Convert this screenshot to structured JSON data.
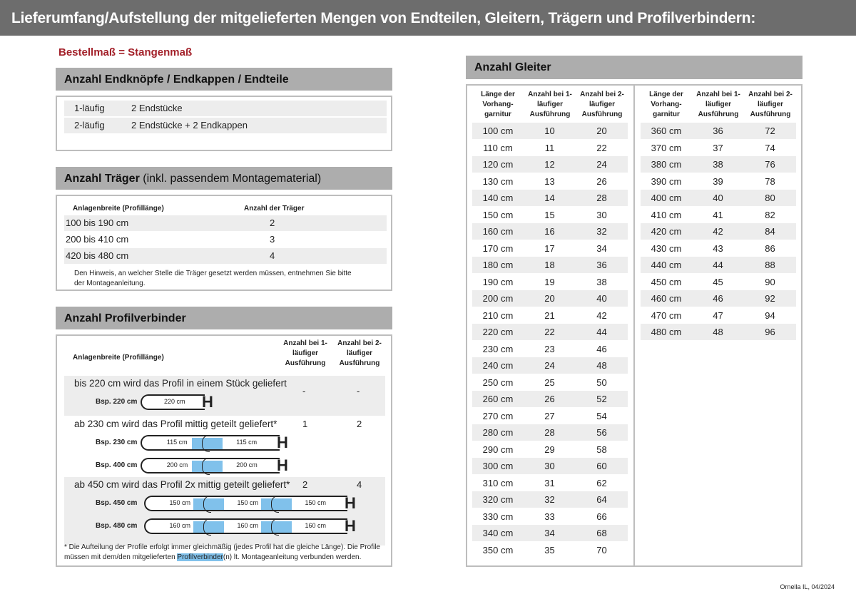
{
  "title": "Lieferumfang/Aufstellung der mitgelieferten Mengen von Endteilen, Gleitern, Trägern und Profilverbindern:",
  "order_note": "Bestellmaß = Stangenmaß",
  "endteile": {
    "heading": "Anzahl Endknöpfe / Endkappen / Endteile",
    "rows": [
      {
        "type": "1-läufig",
        "value": "2 Endstücke"
      },
      {
        "type": "2-läufig",
        "value": "2 Endstücke + 2 Endkappen"
      }
    ]
  },
  "traeger": {
    "heading_bold": "Anzahl Träger",
    "heading_normal": " (inkl. passendem Montagematerial)",
    "col1": "Anlagenbreite (Profillänge)",
    "col2": "Anzahl der Träger",
    "rows": [
      {
        "range": "100 bis 190 cm",
        "count": "2"
      },
      {
        "range": "200 bis 410 cm",
        "count": "3"
      },
      {
        "range": "420 bis 480 cm",
        "count": "4"
      }
    ],
    "note": "Den Hinweis, an welcher Stelle die Träger gesetzt werden müssen, entnehmen Sie bitte der Montageanleitung."
  },
  "profilverbinder": {
    "heading": "Anzahl Profilverbinder",
    "col1": "Anlagenbreite (Profillänge)",
    "col2": "Anzahl bei 1-läufiger Ausführung",
    "col3": "Anzahl bei 2-läufiger Ausführung",
    "groups": [
      {
        "text": "bis 220 cm wird das Profil in einem Stück geliefert",
        "one": "-",
        "two": "-",
        "examples": [
          {
            "label": "Bsp. 220 cm",
            "segments": [
              "220 cm"
            ]
          }
        ]
      },
      {
        "text": "ab 230 cm wird das Profil mittig geteilt geliefert*",
        "one": "1",
        "two": "2",
        "examples": [
          {
            "label": "Bsp. 230 cm",
            "segments": [
              "115 cm",
              "115 cm"
            ]
          },
          {
            "label": "Bsp. 400 cm",
            "segments": [
              "200 cm",
              "200 cm"
            ]
          }
        ]
      },
      {
        "text": "ab 450 cm wird das Profil 2x mittig geteilt geliefert*",
        "one": "2",
        "two": "4",
        "examples": [
          {
            "label": "Bsp. 450 cm",
            "segments": [
              "150 cm",
              "150 cm",
              "150 cm"
            ]
          },
          {
            "label": "Bsp. 480 cm",
            "segments": [
              "160 cm",
              "160 cm",
              "160 cm"
            ]
          }
        ]
      }
    ],
    "footnote_a": "* Die Aufteilung der Profile erfolgt immer gleichmäßig (jedes Profil hat die gleiche Länge). Die Profile müssen mit dem/den mitgelieferten ",
    "footnote_hl": "Profilverbinder",
    "footnote_b": "(n) lt. Montageanleitung verbunden werden."
  },
  "gleiter": {
    "heading": "Anzahl Gleiter",
    "col1": "Länge der Vorhang- garnitur",
    "col2": "Anzahl bei 1-läufiger Ausführung",
    "col3": "Anzahl bei 2-läufiger Ausführung",
    "left": [
      [
        "100 cm",
        "10",
        "20"
      ],
      [
        "110 cm",
        "11",
        "22"
      ],
      [
        "120 cm",
        "12",
        "24"
      ],
      [
        "130 cm",
        "13",
        "26"
      ],
      [
        "140 cm",
        "14",
        "28"
      ],
      [
        "150 cm",
        "15",
        "30"
      ],
      [
        "160 cm",
        "16",
        "32"
      ],
      [
        "170 cm",
        "17",
        "34"
      ],
      [
        "180 cm",
        "18",
        "36"
      ],
      [
        "190 cm",
        "19",
        "38"
      ],
      [
        "200 cm",
        "20",
        "40"
      ],
      [
        "210 cm",
        "21",
        "42"
      ],
      [
        "220 cm",
        "22",
        "44"
      ],
      [
        "230 cm",
        "23",
        "46"
      ],
      [
        "240 cm",
        "24",
        "48"
      ],
      [
        "250 cm",
        "25",
        "50"
      ],
      [
        "260 cm",
        "26",
        "52"
      ],
      [
        "270 cm",
        "27",
        "54"
      ],
      [
        "280 cm",
        "28",
        "56"
      ],
      [
        "290 cm",
        "29",
        "58"
      ],
      [
        "300 cm",
        "30",
        "60"
      ],
      [
        "310 cm",
        "31",
        "62"
      ],
      [
        "320 cm",
        "32",
        "64"
      ],
      [
        "330 cm",
        "33",
        "66"
      ],
      [
        "340 cm",
        "34",
        "68"
      ],
      [
        "350 cm",
        "35",
        "70"
      ]
    ],
    "right": [
      [
        "360 cm",
        "36",
        "72"
      ],
      [
        "370 cm",
        "37",
        "74"
      ],
      [
        "380 cm",
        "38",
        "76"
      ],
      [
        "390 cm",
        "39",
        "78"
      ],
      [
        "400 cm",
        "40",
        "80"
      ],
      [
        "410 cm",
        "41",
        "82"
      ],
      [
        "420 cm",
        "42",
        "84"
      ],
      [
        "430 cm",
        "43",
        "86"
      ],
      [
        "440 cm",
        "44",
        "88"
      ],
      [
        "450 cm",
        "45",
        "90"
      ],
      [
        "460 cm",
        "46",
        "92"
      ],
      [
        "470 cm",
        "47",
        "94"
      ],
      [
        "480 cm",
        "48",
        "96"
      ]
    ]
  },
  "footer": "Ornella IL, 04/2024",
  "colors": {
    "title_bar": "#6d6d6d",
    "section_header": "#adadad",
    "accent_red": "#a3212a",
    "connector_blue": "#80c1eb"
  }
}
